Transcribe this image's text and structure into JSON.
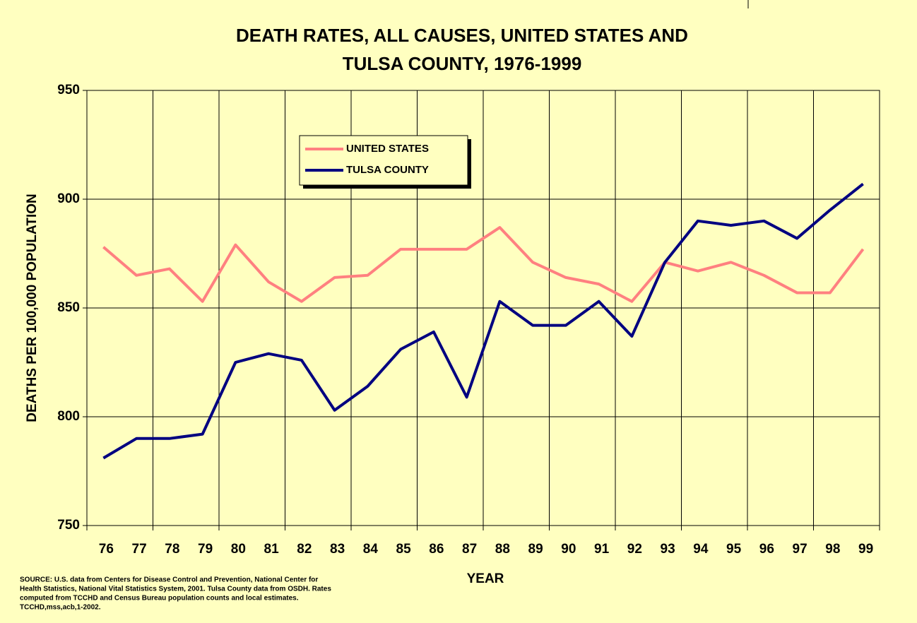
{
  "chart_data": {
    "type": "line",
    "title": "DEATH RATES, ALL CAUSES, UNITED STATES AND",
    "subtitle": "TULSA COUNTY, 1976-1999",
    "x_label": "YEAR",
    "y_label": "DEATHS PER 100,000 POPULATION",
    "source": [
      "SOURCE:  U.S. data from Centers for Disease Control and Prevention, National Center for",
      "Health Statistics, National Vital Statistics System, 2001.  Tulsa County data from OSDH.  Rates",
      "computed from TCCHD and Census Bureau population counts and local estimates.",
      "TCCHD,mss,acb,1-2002."
    ],
    "categories": [
      "76",
      "77",
      "78",
      "79",
      "80",
      "81",
      "82",
      "83",
      "84",
      "85",
      "86",
      "87",
      "88",
      "89",
      "90",
      "91",
      "92",
      "93",
      "94",
      "95",
      "96",
      "97",
      "98",
      "99"
    ],
    "series": [
      {
        "name": "UNITED STATES",
        "color": "#ff8080",
        "values": [
          878,
          865,
          868,
          853,
          879,
          862,
          853,
          864,
          865,
          877,
          877,
          877,
          887,
          871,
          864,
          861,
          853,
          871,
          867,
          871,
          865,
          857,
          857,
          877
        ]
      },
      {
        "name": "TULSA COUNTY",
        "color": "#000080",
        "values": [
          781,
          790,
          790,
          792,
          825,
          829,
          826,
          803,
          814,
          831,
          839,
          809,
          853,
          842,
          842,
          853,
          837,
          871,
          890,
          888,
          890,
          882,
          895,
          907
        ]
      }
    ],
    "ylim": [
      750,
      950
    ],
    "yticks": [
      750,
      800,
      850,
      900,
      950
    ],
    "grid": true,
    "legend": "upper left"
  }
}
